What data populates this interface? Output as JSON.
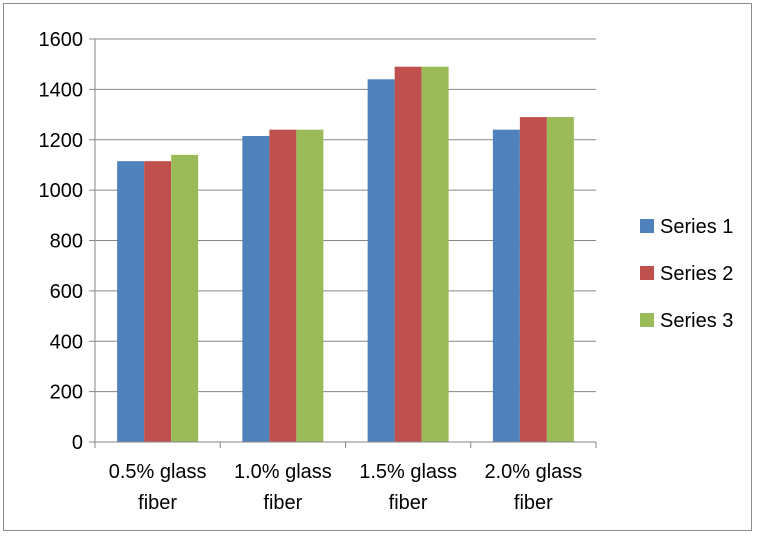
{
  "chart_data": {
    "type": "bar",
    "categories": [
      "0.5% glass fiber",
      "1.0% glass fiber",
      "1.5% glass fiber",
      "2.0% glass fiber"
    ],
    "category_lines": [
      [
        "0.5% glass",
        "fiber"
      ],
      [
        "1.0% glass",
        "fiber"
      ],
      [
        "1.5% glass",
        "fiber"
      ],
      [
        "2.0% glass",
        "fiber"
      ]
    ],
    "series": [
      {
        "name": "Series 1",
        "color": "#4f81bd",
        "values": [
          1115,
          1215,
          1440,
          1240
        ]
      },
      {
        "name": "Series 2",
        "color": "#c0504d",
        "values": [
          1115,
          1240,
          1490,
          1290
        ]
      },
      {
        "name": "Series 3",
        "color": "#9bbb59",
        "values": [
          1140,
          1240,
          1490,
          1290
        ]
      }
    ],
    "title": "",
    "xlabel": "",
    "ylabel": "",
    "ylim": [
      0,
      1600
    ],
    "yticks": [
      0,
      200,
      400,
      600,
      800,
      1000,
      1200,
      1400,
      1600
    ],
    "grid": true,
    "legend_position": "right"
  }
}
